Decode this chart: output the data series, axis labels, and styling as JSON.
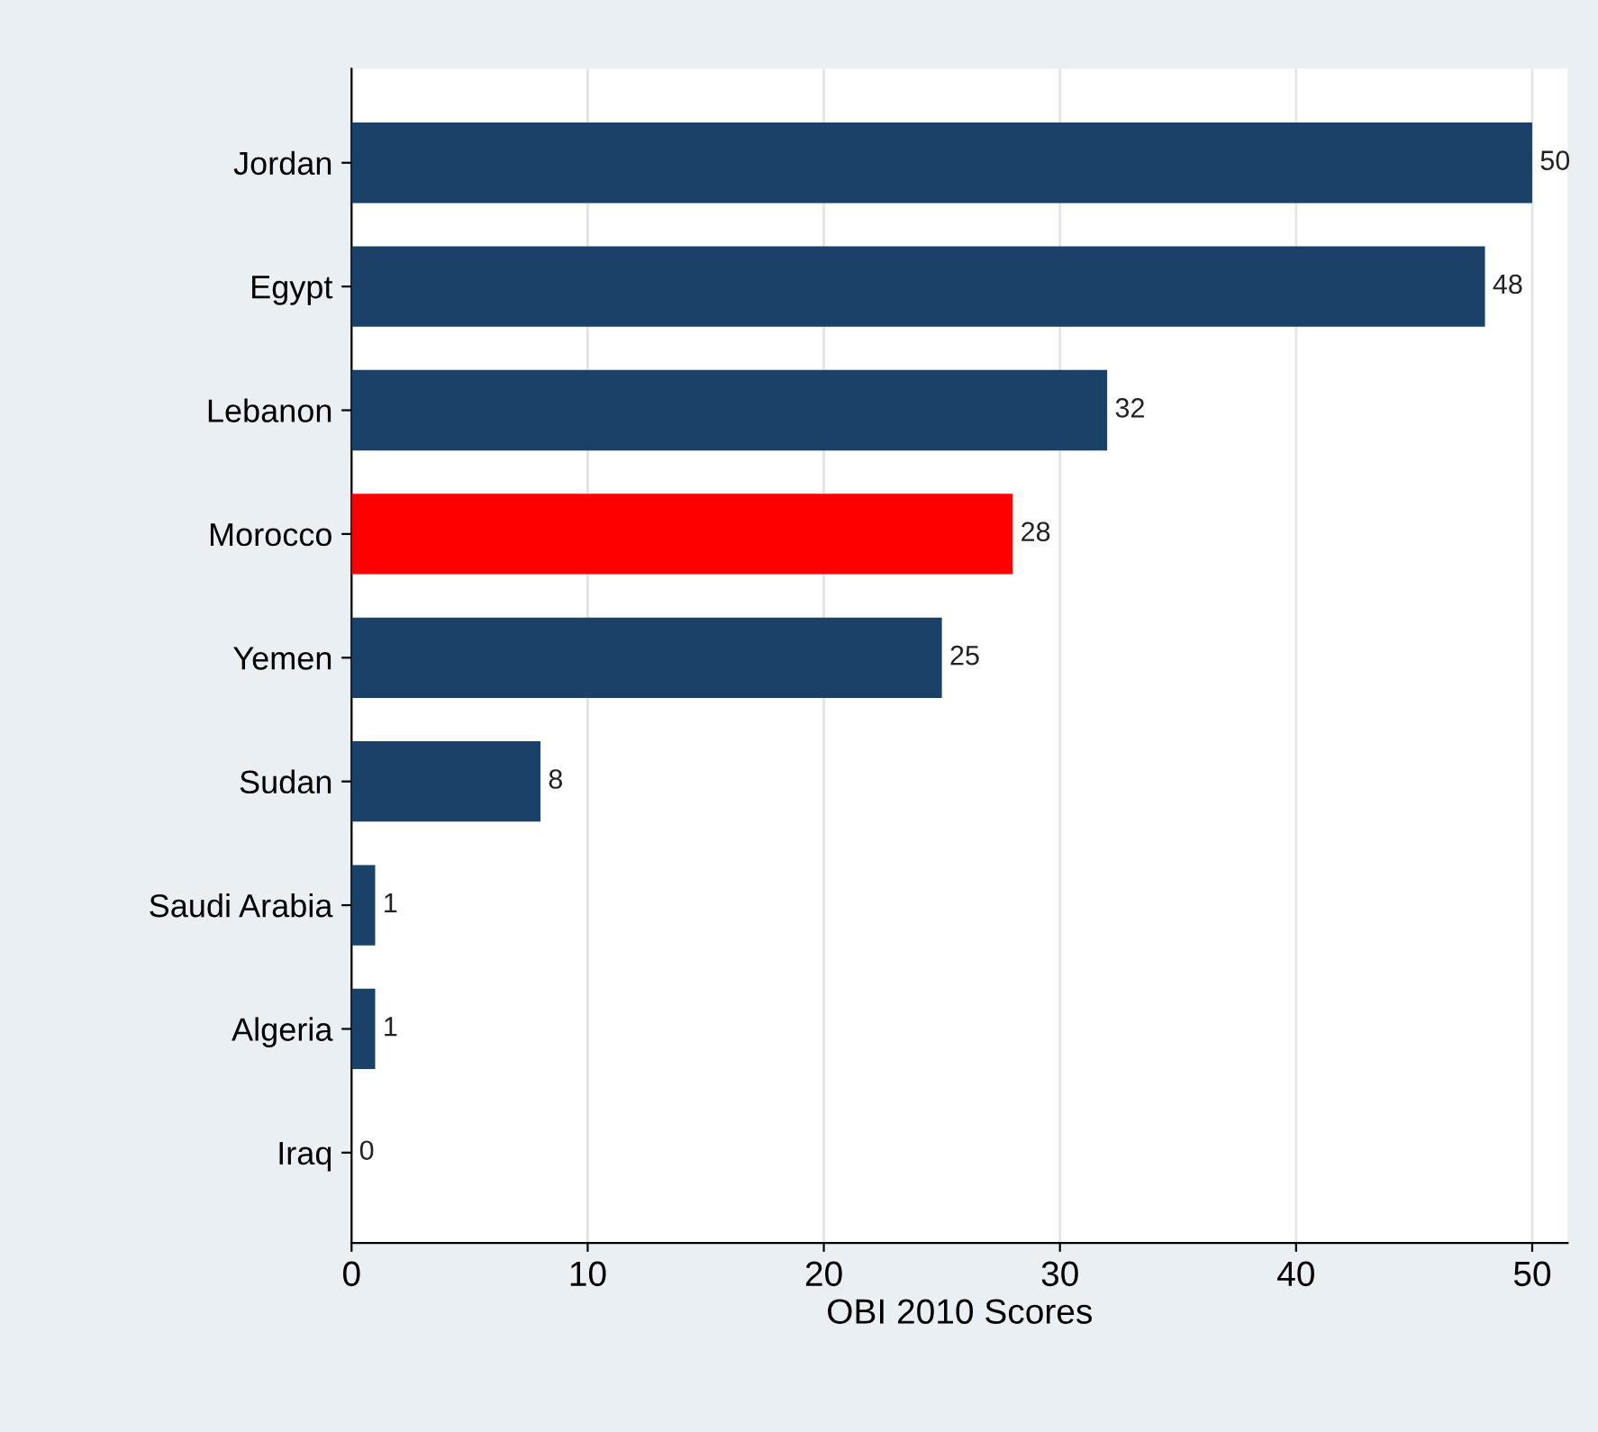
{
  "chart_data": {
    "type": "bar",
    "orientation": "horizontal",
    "xlabel": "OBI 2010 Scores",
    "categories": [
      "Jordan",
      "Egypt",
      "Lebanon",
      "Morocco",
      "Yemen",
      "Sudan",
      "Saudi Arabia",
      "Algeria",
      "Iraq"
    ],
    "values": [
      50,
      48,
      32,
      28,
      25,
      8,
      1,
      1,
      0
    ],
    "colors": [
      "#1a4268",
      "#1a4268",
      "#1a4268",
      "#ff0000",
      "#1a4268",
      "#1a4268",
      "#1a4268",
      "#1a4268",
      "#1a4268"
    ],
    "xlim": [
      0,
      51.5
    ],
    "xticks": [
      0,
      10,
      20,
      30,
      40,
      50
    ],
    "grid": "x",
    "data_labels": true
  }
}
